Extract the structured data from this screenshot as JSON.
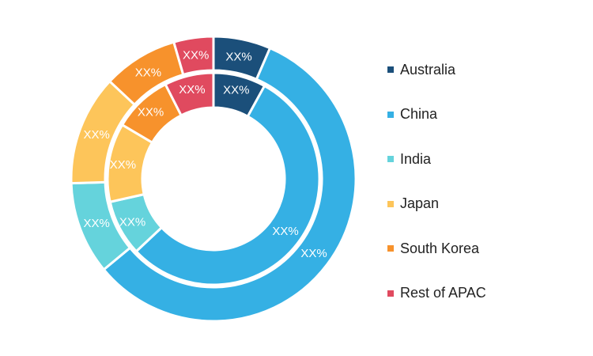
{
  "chart_data": {
    "type": "pie",
    "variant": "nested-donut",
    "categories": [
      "Australia",
      "China",
      "India",
      "Japan",
      "South Korea",
      "Rest of APAC"
    ],
    "colors": [
      "#1b4f7a",
      "#35b0e4",
      "#65d3dc",
      "#fdc55a",
      "#f7922c",
      "#e04a5f"
    ],
    "series": [
      {
        "ring": "outer",
        "values": [
          6.5,
          57.5,
          10.5,
          12.5,
          8.5,
          4.5
        ],
        "labels": [
          "XX%",
          "XX%",
          "XX%",
          "XX%",
          "XX%",
          "XX%"
        ]
      },
      {
        "ring": "inner",
        "values": [
          8,
          55,
          8.5,
          12,
          9,
          7.5
        ],
        "labels": [
          "XX%",
          "XX%",
          "XX%",
          "XX%",
          "XX%",
          "XX%"
        ]
      }
    ],
    "legend_position": "right"
  }
}
